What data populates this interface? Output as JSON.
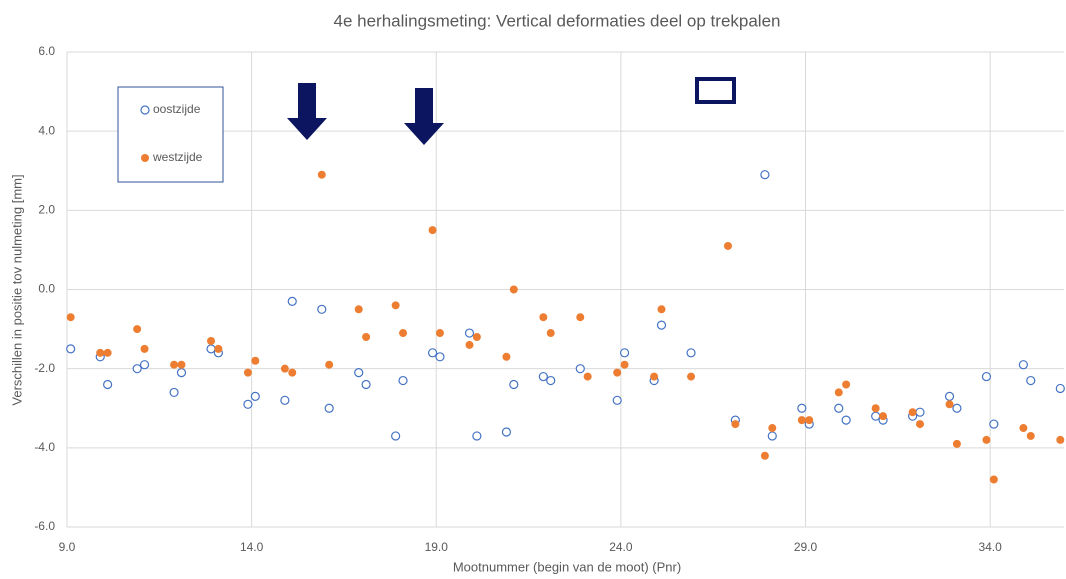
{
  "chart_data": {
    "type": "scatter",
    "title": "4e herhalingsmeting: Vertical deformaties deel op trekpalen",
    "x_label": "Mootnummer (begin van de moot) (Pnr)",
    "y_label": "Verschillen in positie tov nulmeting [mm]",
    "xlim": [
      9,
      36
    ],
    "xticks": [
      {
        "value": 9,
        "label": "9.0"
      },
      {
        "value": 14,
        "label": "14.0"
      },
      {
        "value": 19,
        "label": "19.0"
      },
      {
        "value": 24,
        "label": "24.0"
      },
      {
        "value": 29,
        "label": "29.0"
      },
      {
        "value": 34,
        "label": "34.0"
      }
    ],
    "ylim": [
      -6,
      6
    ],
    "yticks": [
      {
        "value": -6,
        "label": "-6.0"
      },
      {
        "value": -4,
        "label": "-4.0"
      },
      {
        "value": -2,
        "label": "-2.0"
      },
      {
        "value": 0,
        "label": "0.0"
      },
      {
        "value": 2,
        "label": "2.0"
      },
      {
        "value": 4,
        "label": "4.0"
      },
      {
        "value": 6,
        "label": "6.0"
      }
    ],
    "grid": true,
    "series": [
      {
        "name": "oostzijde",
        "color": "#4472c4",
        "filled": false,
        "x": [
          9.1,
          9.9,
          10.1,
          10.9,
          11.1,
          11.9,
          12.1,
          12.9,
          13.1,
          13.9,
          14.1,
          14.9,
          15.1,
          15.9,
          16.1,
          16.9,
          17.1,
          17.9,
          18.1,
          18.9,
          19.1,
          19.9,
          20.1,
          20.9,
          21.1,
          21.9,
          22.1,
          22.9,
          23.9,
          24.1,
          24.9,
          25.1,
          25.9,
          27.1,
          27.9,
          28.1,
          28.9,
          29.1,
          29.9,
          30.1,
          30.9,
          31.1,
          31.9,
          32.1,
          32.9,
          33.1,
          33.9,
          34.1,
          34.9,
          35.1,
          35.9
        ],
        "values": [
          -1.5,
          -1.7,
          -2.4,
          -2.0,
          -1.9,
          -2.6,
          -2.1,
          -1.5,
          -1.6,
          -2.9,
          -2.7,
          -2.8,
          -0.3,
          -0.5,
          -3.0,
          -2.1,
          -2.4,
          -3.7,
          -2.3,
          -1.6,
          -1.7,
          -1.1,
          -3.7,
          -3.6,
          -2.4,
          -2.2,
          -2.3,
          -2.0,
          -2.8,
          -1.6,
          -2.3,
          -0.9,
          -1.6,
          -3.3,
          2.9,
          -3.7,
          -3.0,
          -3.4,
          -3.0,
          -3.3,
          -3.2,
          -3.3,
          -3.2,
          -3.1,
          -2.7,
          -3.0,
          -2.2,
          -3.4,
          -1.9,
          -2.3,
          -2.5
        ]
      },
      {
        "name": "westzijde",
        "color": "#ed7d31",
        "filled": true,
        "x": [
          9.1,
          9.9,
          10.1,
          10.9,
          11.1,
          11.9,
          12.1,
          12.9,
          13.1,
          13.9,
          14.1,
          14.9,
          15.1,
          15.9,
          16.1,
          16.9,
          17.1,
          17.9,
          18.1,
          18.9,
          19.1,
          19.9,
          20.1,
          20.9,
          21.1,
          21.9,
          22.1,
          22.9,
          23.1,
          23.9,
          24.1,
          24.9,
          25.1,
          25.9,
          26.9,
          27.1,
          27.9,
          28.1,
          28.9,
          29.1,
          29.9,
          30.1,
          30.9,
          31.1,
          31.9,
          32.1,
          32.9,
          33.1,
          33.9,
          34.1,
          34.9,
          35.1,
          35.9
        ],
        "values": [
          -0.7,
          -1.6,
          -1.6,
          -1.0,
          -1.5,
          -1.9,
          -1.9,
          -1.3,
          -1.5,
          -2.1,
          -1.8,
          -2.0,
          -2.1,
          2.9,
          -1.9,
          -0.5,
          -1.2,
          -0.4,
          -1.1,
          1.5,
          -1.1,
          -1.4,
          -1.2,
          -1.7,
          0.0,
          -0.7,
          -1.1,
          -0.7,
          -2.2,
          -2.1,
          -1.9,
          -2.2,
          -0.5,
          -2.2,
          1.1,
          -3.4,
          -4.2,
          -3.5,
          -3.3,
          -3.3,
          -2.6,
          -2.4,
          -3.0,
          -3.2,
          -3.1,
          -3.4,
          -2.9,
          -3.9,
          -3.8,
          -4.8,
          -3.5,
          -3.7,
          -3.8
        ]
      }
    ]
  }
}
